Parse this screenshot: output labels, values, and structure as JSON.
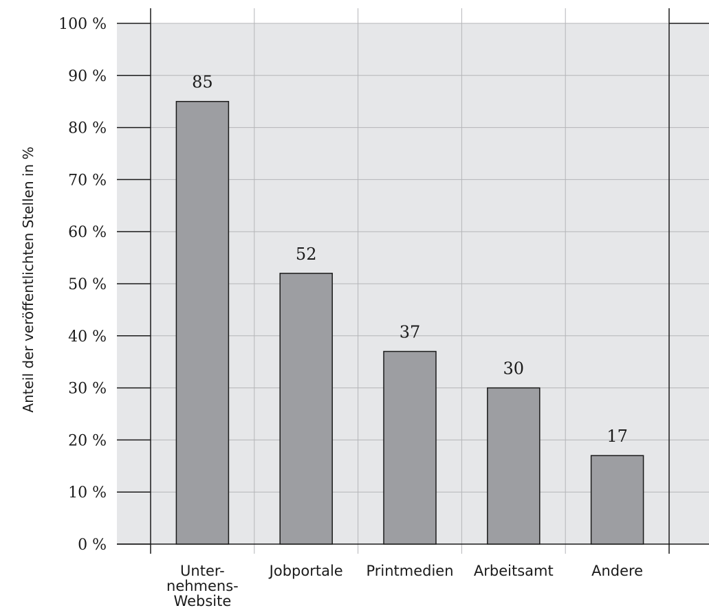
{
  "chart_data": {
    "type": "bar",
    "categories": [
      "Unter-\nnehmens-\nWebsite",
      "Jobportale",
      "Printmedien",
      "Arbeitsamt",
      "Andere"
    ],
    "values": [
      85,
      52,
      37,
      30,
      17
    ],
    "data_labels": [
      "85",
      "52",
      "37",
      "30",
      "17"
    ],
    "ylabel": "Anteil der veröffentlichten Stellen in %",
    "xlabel": "",
    "ylim": [
      0,
      100
    ],
    "yticks": [
      0,
      10,
      20,
      30,
      40,
      50,
      60,
      70,
      80,
      90,
      100
    ],
    "ytick_labels": [
      "0 %",
      "10 %",
      "20 %",
      "30 %",
      "40 %",
      "50 %",
      "60 %",
      "70 %",
      "80 %",
      "90 %",
      "100 %"
    ],
    "grid": true,
    "legend": "none"
  },
  "colors": {
    "plot_background": "#e6e7e9",
    "bar_fill": "#9d9ea2",
    "bar_stroke": "#1a1a1a",
    "grid": "#b4b5b8",
    "axis": "#1a1a1a"
  }
}
